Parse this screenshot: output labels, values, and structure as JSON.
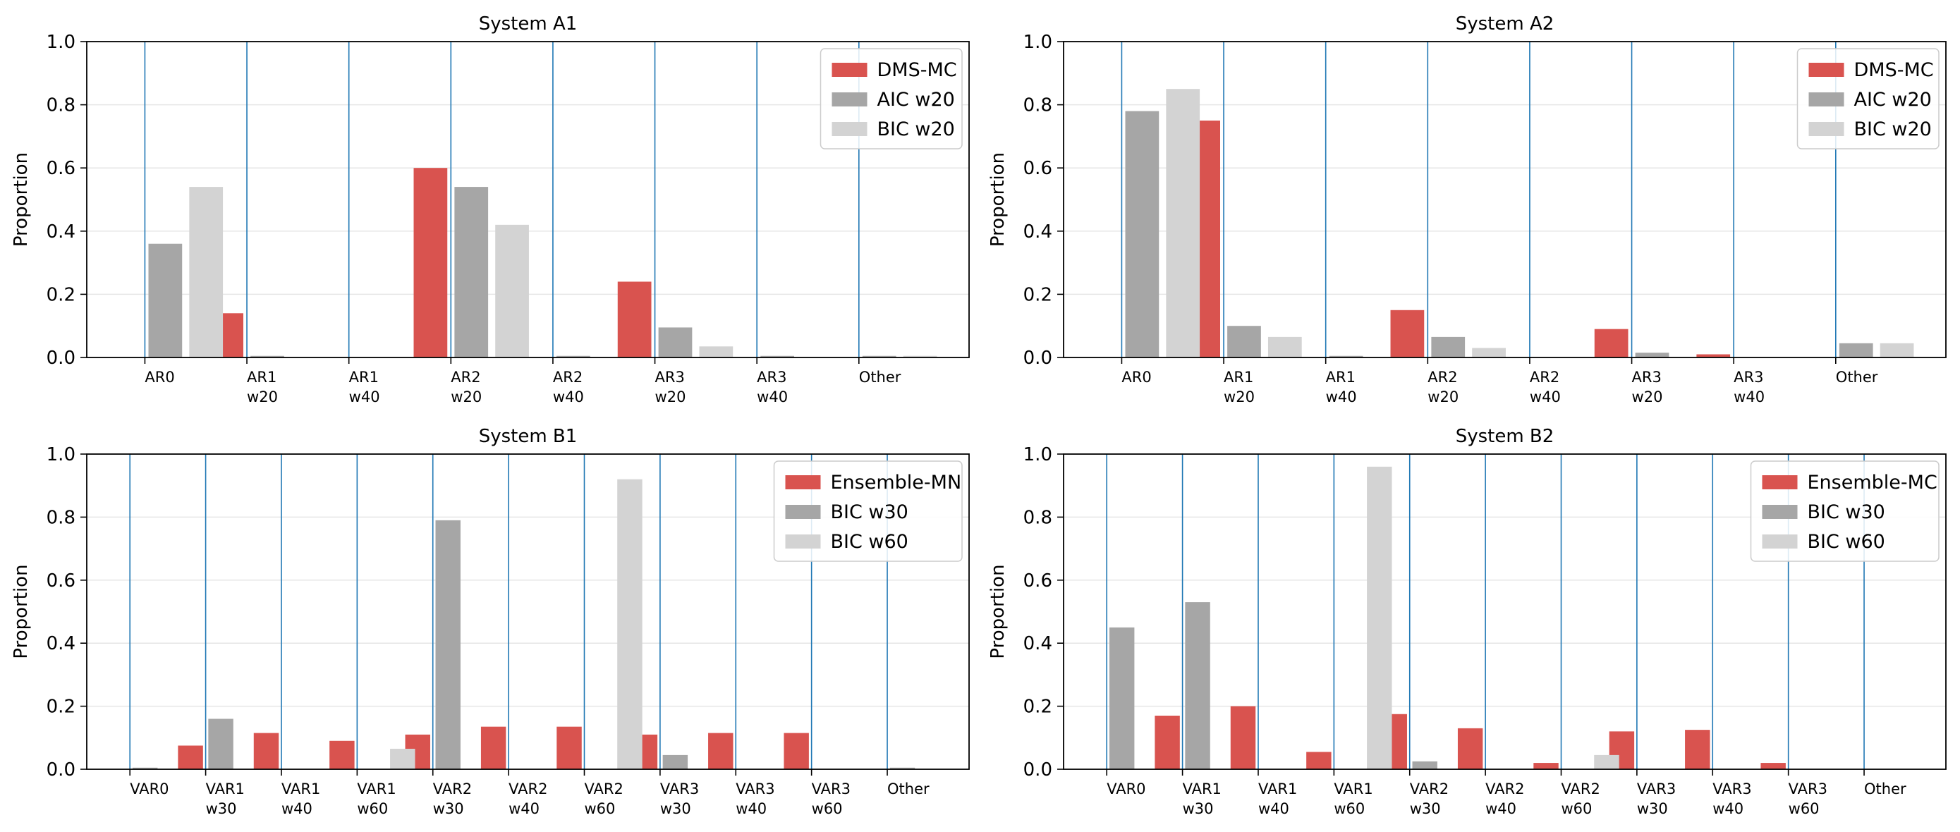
{
  "colors": {
    "red": "#d9534f",
    "dark_gray": "#a6a6a6",
    "light_gray": "#d3d3d3",
    "vline": "#1f77b4",
    "grid": "#e6e6e6"
  },
  "chart_data": [
    {
      "type": "bar",
      "title": "System A1",
      "ylabel": "Proportion",
      "ylim": [
        0,
        1
      ],
      "yticks": [
        "0.0",
        "0.2",
        "0.4",
        "0.6",
        "0.8",
        "1.0"
      ],
      "grid": "horizontal",
      "legend_position": "top-right",
      "categories": [
        [
          "AR0"
        ],
        [
          "AR1",
          "w20"
        ],
        [
          "AR1",
          "w40"
        ],
        [
          "AR2",
          "w20"
        ],
        [
          "AR2",
          "w40"
        ],
        [
          "AR3",
          "w20"
        ],
        [
          "AR3",
          "w40"
        ],
        [
          "Other"
        ]
      ],
      "series": [
        {
          "name": "DMS-MC",
          "color": "red",
          "values": [
            0,
            0.14,
            0,
            0.6,
            0,
            0.24,
            0,
            0
          ]
        },
        {
          "name": "AIC w20",
          "color": "dark_gray",
          "values": [
            0.36,
            0.005,
            0,
            0.54,
            0.005,
            0.095,
            0.005,
            0.005
          ]
        },
        {
          "name": "BIC w20",
          "color": "light_gray",
          "values": [
            0.54,
            0,
            0,
            0.42,
            0,
            0.035,
            0,
            0.005
          ]
        }
      ]
    },
    {
      "type": "bar",
      "title": "System A2",
      "ylabel": "Proportion",
      "ylim": [
        0,
        1
      ],
      "yticks": [
        "0.0",
        "0.2",
        "0.4",
        "0.6",
        "0.8",
        "1.0"
      ],
      "grid": "horizontal",
      "legend_position": "top-right",
      "categories": [
        [
          "AR0"
        ],
        [
          "AR1",
          "w20"
        ],
        [
          "AR1",
          "w40"
        ],
        [
          "AR2",
          "w20"
        ],
        [
          "AR2",
          "w40"
        ],
        [
          "AR3",
          "w20"
        ],
        [
          "AR3",
          "w40"
        ],
        [
          "Other"
        ]
      ],
      "series": [
        {
          "name": "DMS-MC",
          "color": "red",
          "values": [
            0,
            0.75,
            0,
            0.15,
            0,
            0.09,
            0.01,
            0
          ]
        },
        {
          "name": "AIC w20",
          "color": "dark_gray",
          "values": [
            0.78,
            0.1,
            0.005,
            0.065,
            0,
            0.015,
            0,
            0.045
          ]
        },
        {
          "name": "BIC w20",
          "color": "light_gray",
          "values": [
            0.85,
            0.065,
            0,
            0.03,
            0,
            0,
            0,
            0.045
          ]
        }
      ]
    },
    {
      "type": "bar",
      "title": "System B1",
      "ylabel": "Proportion",
      "ylim": [
        0,
        1
      ],
      "yticks": [
        "0.0",
        "0.2",
        "0.4",
        "0.6",
        "0.8",
        "1.0"
      ],
      "grid": "horizontal",
      "legend_position": "top-right",
      "categories": [
        [
          "VAR0"
        ],
        [
          "VAR1",
          "w30"
        ],
        [
          "VAR1",
          "w40"
        ],
        [
          "VAR1",
          "w60"
        ],
        [
          "VAR2",
          "w30"
        ],
        [
          "VAR2",
          "w40"
        ],
        [
          "VAR2",
          "w60"
        ],
        [
          "VAR3",
          "w30"
        ],
        [
          "VAR3",
          "w40"
        ],
        [
          "VAR3",
          "w60"
        ],
        [
          "Other"
        ]
      ],
      "series": [
        {
          "name": "Ensemble-MN",
          "color": "red",
          "values": [
            0,
            0.075,
            0.115,
            0.09,
            0.11,
            0.135,
            0.135,
            0.11,
            0.115,
            0.115,
            0
          ]
        },
        {
          "name": "BIC w30",
          "color": "dark_gray",
          "values": [
            0.005,
            0.16,
            0,
            0,
            0.79,
            0,
            0,
            0.045,
            0,
            0,
            0.005
          ]
        },
        {
          "name": "BIC w60",
          "color": "light_gray",
          "values": [
            0,
            0,
            0,
            0.065,
            0,
            0,
            0.92,
            0,
            0,
            0,
            0
          ]
        }
      ]
    },
    {
      "type": "bar",
      "title": "System B2",
      "ylabel": "Proportion",
      "ylim": [
        0,
        1
      ],
      "yticks": [
        "0.0",
        "0.2",
        "0.4",
        "0.6",
        "0.8",
        "1.0"
      ],
      "grid": "horizontal",
      "legend_position": "top-right",
      "categories": [
        [
          "VAR0"
        ],
        [
          "VAR1",
          "w30"
        ],
        [
          "VAR1",
          "w40"
        ],
        [
          "VAR1",
          "w60"
        ],
        [
          "VAR2",
          "w30"
        ],
        [
          "VAR2",
          "w40"
        ],
        [
          "VAR2",
          "w60"
        ],
        [
          "VAR3",
          "w30"
        ],
        [
          "VAR3",
          "w40"
        ],
        [
          "VAR3",
          "w60"
        ],
        [
          "Other"
        ]
      ],
      "series": [
        {
          "name": "Ensemble-MC",
          "color": "red",
          "values": [
            0,
            0.17,
            0.2,
            0.055,
            0.175,
            0.13,
            0.02,
            0.12,
            0.125,
            0.02,
            0
          ]
        },
        {
          "name": "BIC w30",
          "color": "dark_gray",
          "values": [
            0.45,
            0.53,
            0,
            0,
            0.025,
            0,
            0,
            0,
            0,
            0,
            0
          ]
        },
        {
          "name": "BIC w60",
          "color": "light_gray",
          "values": [
            0,
            0,
            0,
            0.96,
            0,
            0,
            0.045,
            0,
            0,
            0,
            0
          ]
        }
      ]
    }
  ]
}
